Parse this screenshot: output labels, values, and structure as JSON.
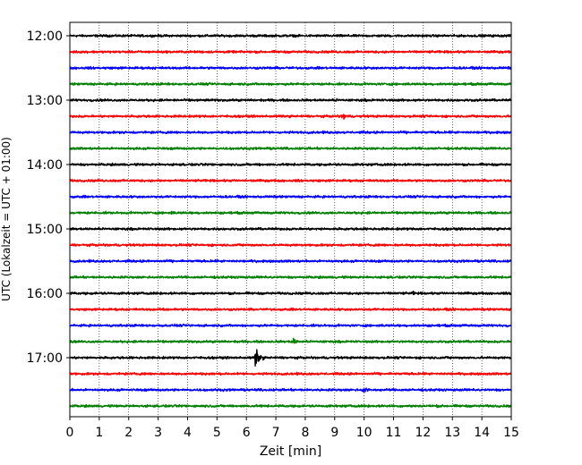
{
  "chart_data": {
    "type": "line",
    "title": "",
    "xlabel": "Zeit  [min]",
    "ylabel": "UTC (Lokalzeit = UTC + 01:00)",
    "xlim": [
      0,
      15
    ],
    "x_ticks": [
      0,
      1,
      2,
      3,
      4,
      5,
      6,
      7,
      8,
      9,
      10,
      11,
      12,
      13,
      14,
      15
    ],
    "x_grid": "dotted vertical lines at each minute",
    "y_tick_labels": [
      "12:00",
      "13:00",
      "14:00",
      "15:00",
      "16:00",
      "17:00"
    ],
    "trace_start_hours": [
      12.0,
      12.25,
      12.5,
      12.75,
      13.0,
      13.25,
      13.5,
      13.75,
      14.0,
      14.25,
      14.5,
      14.75,
      15.0,
      15.25,
      15.5,
      15.75,
      16.0,
      16.25,
      16.5,
      16.75,
      17.0,
      17.25,
      17.5,
      17.75
    ],
    "trace_colors": [
      "#000000",
      "#ff0000",
      "#0000ff",
      "#008000"
    ],
    "noise_amplitude": 0.1,
    "events": [
      {
        "trace": 5,
        "minute": 9.25,
        "amplitude": 0.45
      },
      {
        "trace": 17,
        "minute": 3.2,
        "amplitude": 0.3
      },
      {
        "trace": 19,
        "minute": 7.55,
        "amplitude": 0.45
      },
      {
        "trace": 20,
        "minute": 6.3,
        "amplitude": 0.95
      },
      {
        "trace": 22,
        "minute": 9.95,
        "amplitude": 0.45
      },
      {
        "trace": 0,
        "minute": 9.05,
        "amplitude": 0.2
      },
      {
        "trace": 4,
        "minute": 9.0,
        "amplitude": 0.2
      },
      {
        "trace": 8,
        "minute": 6.45,
        "amplitude": 0.2
      },
      {
        "trace": 11,
        "minute": 3.45,
        "amplitude": 0.2
      },
      {
        "trace": 16,
        "minute": 11.65,
        "amplitude": 0.2
      },
      {
        "trace": 23,
        "minute": 12.45,
        "amplitude": 0.15
      }
    ]
  }
}
